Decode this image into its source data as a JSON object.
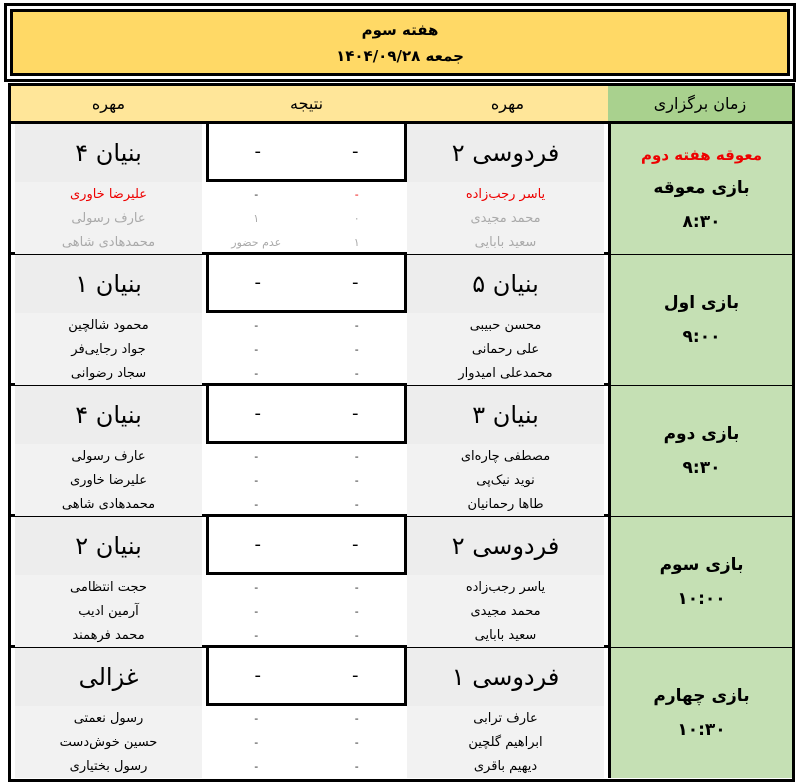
{
  "title": {
    "week": "هفته سوم",
    "date": "جمعه ۱۴۰۴/۰۹/۲۸"
  },
  "header": {
    "time": "زمان برگزاری",
    "home": "مهره",
    "result": "نتیجه",
    "away": "مهره"
  },
  "colors": {
    "title_bg": "#ffd966",
    "header_bg": "#ffe699",
    "time_header_bg": "#a9d18e",
    "time_bg": "#c5e0b4",
    "highlight": "#ee0000"
  },
  "matches": [
    {
      "note": "معوقه هفته دوم",
      "name": "بازی معوقه",
      "time": "۸:۳۰",
      "home": "فردوسی ۲",
      "away": "بنیان ۴",
      "home_score": "-",
      "away_score": "-",
      "boards": [
        {
          "home_player": "یاسر رجب‌زاده",
          "home": "-",
          "away": "-",
          "away_player": "علیرضا خاوری",
          "style": "highlight"
        },
        {
          "home_player": "محمد مجیدی",
          "home": "۰",
          "away": "۱",
          "away_player": "عارف رسولی",
          "style": "muted"
        },
        {
          "home_player": "سعید بابایی",
          "home": "۱",
          "away": "عدم حضور",
          "away_player": "محمدهادی شاهی",
          "style": "muted"
        }
      ]
    },
    {
      "name": "بازی اول",
      "time": "۹:۰۰",
      "home": "بنیان ۵",
      "away": "بنیان ۱",
      "home_score": "-",
      "away_score": "-",
      "boards": [
        {
          "home_player": "محسن حبیبی",
          "home": "-",
          "away": "-",
          "away_player": "محمود شالچین"
        },
        {
          "home_player": "علی رحمانی",
          "home": "-",
          "away": "-",
          "away_player": "جواد رجایی‌فر"
        },
        {
          "home_player": "محمدعلی امیدوار",
          "home": "-",
          "away": "-",
          "away_player": "سجاد رضوانی"
        }
      ]
    },
    {
      "name": "بازی دوم",
      "time": "۹:۳۰",
      "home": "بنیان ۳",
      "away": "بنیان ۴",
      "home_score": "-",
      "away_score": "-",
      "boards": [
        {
          "home_player": "مصطفی چاره‌ای",
          "home": "-",
          "away": "-",
          "away_player": "عارف رسولی"
        },
        {
          "home_player": "نوید نیک‌پی",
          "home": "-",
          "away": "-",
          "away_player": "علیرضا خاوری"
        },
        {
          "home_player": "طاها رحمانیان",
          "home": "-",
          "away": "-",
          "away_player": "محمدهادی شاهی"
        }
      ]
    },
    {
      "name": "بازی سوم",
      "time": "۱۰:۰۰",
      "home": "فردوسی ۲",
      "away": "بنیان ۲",
      "home_score": "-",
      "away_score": "-",
      "boards": [
        {
          "home_player": "یاسر رجب‌زاده",
          "home": "-",
          "away": "-",
          "away_player": "حجت انتظامی"
        },
        {
          "home_player": "محمد مجیدی",
          "home": "-",
          "away": "-",
          "away_player": "آرمین ادیب"
        },
        {
          "home_player": "سعید بابایی",
          "home": "-",
          "away": "-",
          "away_player": "محمد فرهمند"
        }
      ]
    },
    {
      "name": "بازی چهارم",
      "time": "۱۰:۳۰",
      "home": "فردوسی ۱",
      "away": "غزالی",
      "home_score": "-",
      "away_score": "-",
      "boards": [
        {
          "home_player": "عارف ترابی",
          "home": "-",
          "away": "-",
          "away_player": "رسول نعمتی"
        },
        {
          "home_player": "ابراهیم گلچین",
          "home": "-",
          "away": "-",
          "away_player": "حسین خوش‌دست"
        },
        {
          "home_player": "دیهیم باقری",
          "home": "-",
          "away": "-",
          "away_player": "رسول بختیاری"
        }
      ]
    }
  ]
}
